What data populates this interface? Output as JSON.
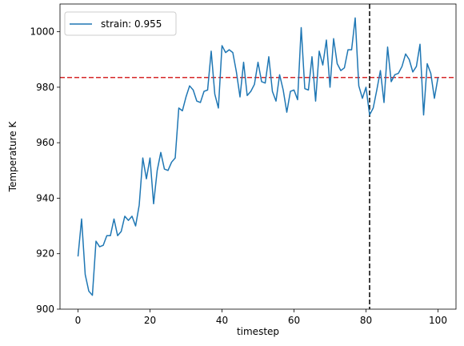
{
  "chart_data": {
    "type": "line",
    "xlabel": "timestep",
    "ylabel": "Temperature K",
    "xlim": [
      -5,
      105
    ],
    "ylim": [
      900,
      1010
    ],
    "xticks": [
      0,
      20,
      40,
      60,
      80,
      100
    ],
    "yticks": [
      900,
      920,
      940,
      960,
      980,
      1000
    ],
    "legend": {
      "placement": "top-left"
    },
    "grid": false,
    "series": [
      {
        "name": "strain: 0.955",
        "color": "#1f77b4",
        "x": [
          0,
          1,
          2,
          3,
          4,
          5,
          6,
          7,
          8,
          9,
          10,
          11,
          12,
          13,
          14,
          15,
          16,
          17,
          18,
          19,
          20,
          21,
          22,
          23,
          24,
          25,
          26,
          27,
          28,
          29,
          30,
          31,
          32,
          33,
          34,
          35,
          36,
          37,
          38,
          39,
          40,
          41,
          42,
          43,
          44,
          45,
          46,
          47,
          48,
          49,
          50,
          51,
          52,
          53,
          54,
          55,
          56,
          57,
          58,
          59,
          60,
          61,
          62,
          63,
          64,
          65,
          66,
          67,
          68,
          69,
          70,
          71,
          72,
          73,
          74,
          75,
          76,
          77,
          78,
          79,
          80,
          81,
          82,
          83,
          84,
          85,
          86,
          87,
          88,
          89,
          90,
          91,
          92,
          93,
          94,
          95,
          96,
          97,
          98,
          99,
          100
        ],
        "values": [
          919,
          932.5,
          912.5,
          906.5,
          905,
          924.5,
          922.5,
          923,
          926.5,
          926.5,
          932.5,
          926.5,
          928,
          933.5,
          932,
          933.5,
          930,
          937.5,
          954.5,
          947,
          954.5,
          938,
          950,
          956.5,
          950.5,
          950,
          953,
          954.5,
          972.5,
          971.5,
          976.5,
          980.5,
          979,
          975,
          974.5,
          978.5,
          979,
          993,
          977.5,
          972.5,
          995,
          992.5,
          993.5,
          992.5,
          985.5,
          976.5,
          989,
          977,
          978.5,
          981,
          989,
          982,
          981.5,
          991,
          978.5,
          975,
          984.5,
          979,
          971,
          978.5,
          979,
          975.5,
          1001.5,
          979.5,
          979,
          991,
          975,
          993,
          988,
          997,
          980,
          997.5,
          988.5,
          986,
          987,
          993.5,
          993.5,
          1005,
          980.5,
          976,
          980,
          970,
          972.5,
          979,
          986,
          974.5,
          994.5,
          982,
          984.5,
          985,
          987.5,
          992,
          990,
          985.5,
          987.5,
          995.5,
          970,
          988.5,
          985,
          976,
          983.5
        ]
      }
    ],
    "reference_lines": [
      {
        "orientation": "horizontal",
        "value": 983.5,
        "color": "#d62728",
        "style": "dashed"
      },
      {
        "orientation": "vertical",
        "value": 81,
        "color": "#000000",
        "style": "dashed"
      }
    ]
  }
}
